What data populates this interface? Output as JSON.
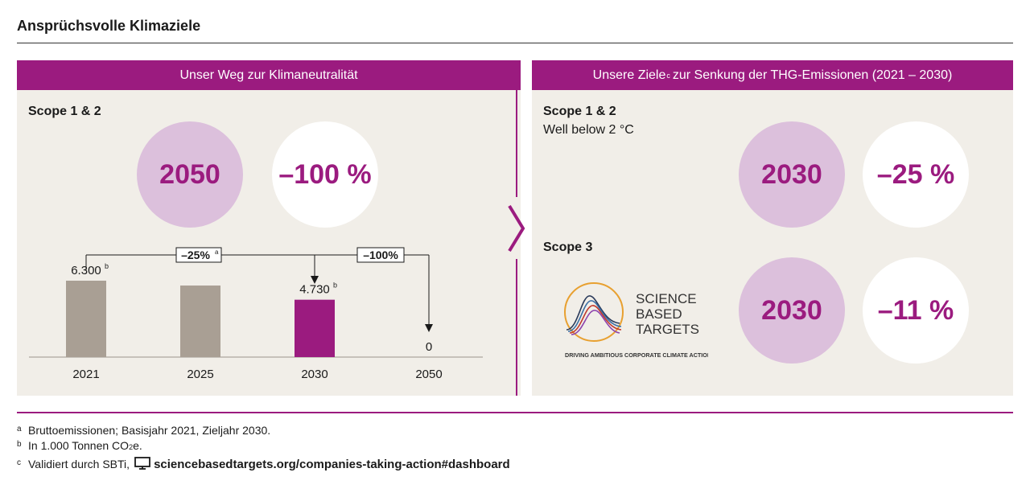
{
  "title": "Ansprüchsvolle Klimaziele",
  "left_panel": {
    "header": "Unser Weg zur Klimaneutralität",
    "scope_label": "Scope 1 & 2",
    "target_year": "2050",
    "target_reduction": "–100 %",
    "bracket_labels": [
      "–25%",
      "–100%"
    ],
    "bracket_label_footnote": "a"
  },
  "right_panel": {
    "header_pre": "Unsere Ziele",
    "header_sup": "c",
    "header_post": "zur Senkung der THG-Emissionen (2021 – 2030)",
    "scope12": {
      "label": "Scope 1 & 2",
      "sub": "Well below 2 °C",
      "year": "2030",
      "reduction": "–25 %"
    },
    "scope3": {
      "label": "Scope 3",
      "year": "2030",
      "reduction": "–11 %"
    },
    "logo": {
      "line1": "SCIENCE",
      "line2": "BASED",
      "line3": "TARGETS",
      "tagline": "DRIVING AMBITIOUS CORPORATE CLIMATE ACTION"
    }
  },
  "chart_data": {
    "type": "bar",
    "categories": [
      "2021",
      "2025",
      "2030",
      "2050"
    ],
    "values": [
      6300,
      5900,
      4730,
      0
    ],
    "value_labels": [
      "6.300",
      "",
      "4.730",
      "0"
    ],
    "value_label_footnotes": [
      "b",
      "",
      "b",
      ""
    ],
    "highlight_index": 2,
    "ylim": [
      0,
      7000
    ],
    "xlabel": "",
    "ylabel": "",
    "annotations": [
      {
        "from": "2021",
        "to": "2030",
        "label": "–25%"
      },
      {
        "from": "2030",
        "to": "2050",
        "label": "–100%"
      }
    ],
    "colors": {
      "default": "#a99f94",
      "highlight": "#9b1b7f"
    }
  },
  "footnotes": [
    {
      "mark": "a",
      "text": "Bruttoemissionen; Basisjahr 2021, Zieljahr 2030."
    },
    {
      "mark": "b",
      "text_pre": "In 1.000 Tonnen CO",
      "text_sub": "2",
      "text_post": "e."
    },
    {
      "mark": "c",
      "text": "Validiert durch SBTi,",
      "icon": "monitor-icon",
      "link": "sciencebasedtargets.org/companies-taking-action#dashboard"
    }
  ],
  "colors": {
    "accent": "#9b1b7f",
    "lilac": "#dcc0dc",
    "panel_bg": "#f1eee8",
    "bar_grey": "#a99f94"
  }
}
